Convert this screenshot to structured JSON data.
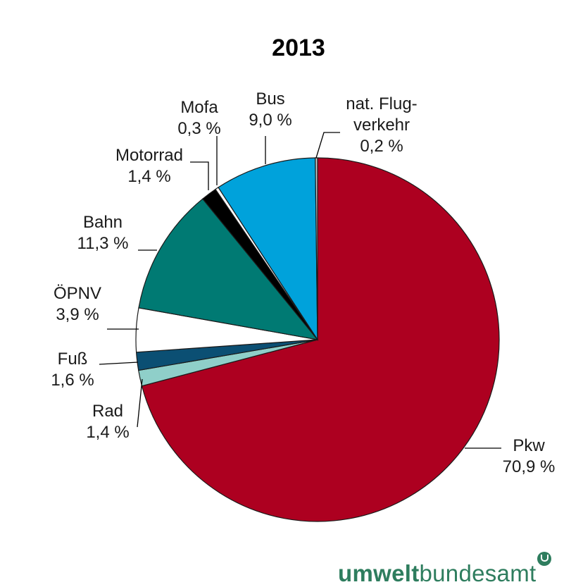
{
  "chart_data": {
    "type": "pie",
    "title": "2013",
    "start": "12 o'clock, clockwise",
    "slices": [
      {
        "label_lines": [
          "Pkw",
          "70,9 %"
        ],
        "value": 70.9,
        "color": "#ad0020"
      },
      {
        "label_lines": [
          "Rad",
          "1,4 %"
        ],
        "value": 1.4,
        "color": "#8fcfc9"
      },
      {
        "label_lines": [
          "Fuß",
          "1,6 %"
        ],
        "value": 1.6,
        "color": "#0b4f73"
      },
      {
        "label_lines": [
          "ÖPNV",
          "3,9 %"
        ],
        "value": 3.9,
        "color": "#ffffff"
      },
      {
        "label_lines": [
          "Bahn",
          "11,3 %"
        ],
        "value": 11.3,
        "color": "#007a73"
      },
      {
        "label_lines": [
          "Motorrad",
          "1,4 %"
        ],
        "value": 1.4,
        "color": "#000000"
      },
      {
        "label_lines": [
          "Mofa",
          "0,3 %"
        ],
        "value": 0.3,
        "color": "#ffffff"
      },
      {
        "label_lines": [
          "Bus",
          "9,0 %"
        ],
        "value": 9.0,
        "color": "#00a2db"
      },
      {
        "label_lines": [
          "nat. Flug-",
          "verkehr",
          "0,2 %"
        ],
        "value": 0.2,
        "color": "#c8c8c8"
      }
    ]
  },
  "logo": {
    "part1": "umwelt",
    "part2": "bundesamt"
  }
}
